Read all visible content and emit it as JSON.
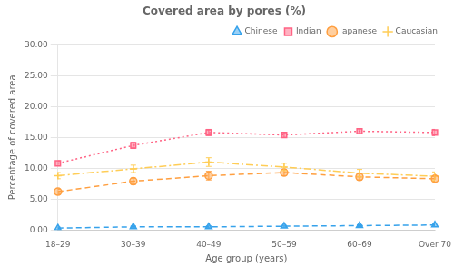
{
  "chart_data": {
    "type": "line",
    "title": "Covered area by pores (%)",
    "x_label": "Age group (years)",
    "y_label": "Percentage of covered area",
    "categories": [
      "18–29",
      "30–39",
      "40–49",
      "50–59",
      "60–69",
      "Over 70"
    ],
    "series": [
      {
        "name": "Chinese",
        "values": [
          0.3,
          0.5,
          0.5,
          0.6,
          0.7,
          0.8
        ],
        "errors": [
          0.15,
          0.15,
          0.15,
          0.15,
          0.15,
          0.15
        ],
        "marker": "triangle",
        "line_style": "dashed"
      },
      {
        "name": "Indian",
        "values": [
          10.8,
          13.7,
          15.8,
          15.4,
          16.0,
          15.8
        ],
        "errors": [
          0.4,
          0.5,
          0.5,
          0.4,
          0.4,
          0.5
        ],
        "marker": "square",
        "line_style": "dotted"
      },
      {
        "name": "Japanese",
        "values": [
          6.2,
          7.9,
          8.8,
          9.3,
          8.6,
          8.3
        ],
        "errors": [
          0.4,
          0.5,
          0.7,
          0.5,
          0.5,
          0.4
        ],
        "marker": "circle",
        "line_style": "dashed"
      },
      {
        "name": "Caucasian",
        "values": [
          8.8,
          9.9,
          11.0,
          10.2,
          9.2,
          8.7
        ],
        "errors": [
          0.5,
          0.6,
          0.7,
          0.6,
          0.6,
          0.7
        ],
        "marker": "plus",
        "line_style": "dashdot"
      }
    ],
    "ylim": [
      0.0,
      30.0
    ],
    "yticks": [
      {
        "value": 0,
        "label": "0.00"
      },
      {
        "value": 5,
        "label": "5.00"
      },
      {
        "value": 10,
        "label": "10.00"
      },
      {
        "value": 15,
        "label": "15.00"
      },
      {
        "value": 20,
        "label": "20.00"
      },
      {
        "value": 25,
        "label": "25.00"
      },
      {
        "value": 30,
        "label": "30.00"
      }
    ],
    "grid": true,
    "legend": "upper right"
  }
}
